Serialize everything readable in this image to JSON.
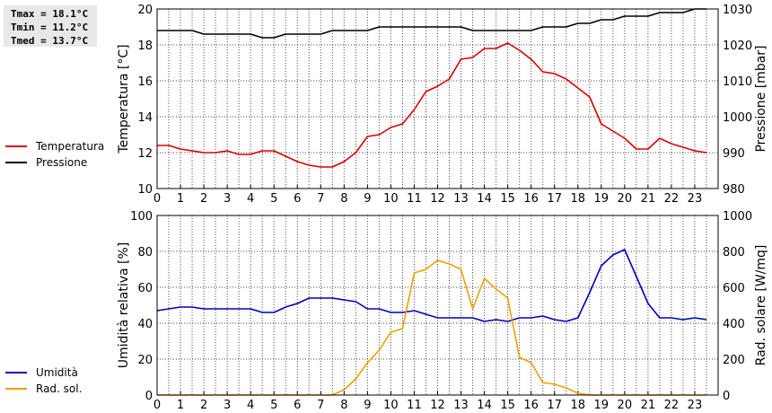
{
  "stats": {
    "tmax": "Tmax = 18.1°C",
    "tmin": "Tmin = 11.2°C",
    "tmed": "Tmed = 13.7°C"
  },
  "colors": {
    "temperature": "#dd0000",
    "pressure": "#000000",
    "humidity": "#0000bb",
    "radiation": "#f0a000",
    "grid": "#000000"
  },
  "chart_data": [
    {
      "type": "line",
      "xlabel": "",
      "x_ticks": [
        "0",
        "1",
        "2",
        "3",
        "4",
        "5",
        "6",
        "7",
        "8",
        "9",
        "10",
        "11",
        "12",
        "13",
        "14",
        "15",
        "16",
        "17",
        "18",
        "19",
        "20",
        "21",
        "22",
        "23"
      ],
      "xlim": [
        0,
        24
      ],
      "ylabel_left": "Temperatura [°C]",
      "ylim_left": [
        10,
        20
      ],
      "yticks_left": [
        "10",
        "12",
        "14",
        "16",
        "18",
        "20"
      ],
      "ylabel_right": "Pressione [mbar]",
      "ylim_right": [
        980,
        1030
      ],
      "yticks_right": [
        "980",
        "990",
        "1000",
        "1010",
        "1020",
        "1030"
      ],
      "legend": [
        "Temperatura",
        "Pressione"
      ],
      "series": [
        {
          "name": "Temperatura",
          "axis": "left",
          "x": [
            0,
            0.5,
            1,
            1.5,
            2,
            2.5,
            3,
            3.5,
            4,
            4.5,
            5,
            5.5,
            6,
            6.5,
            7,
            7.5,
            8,
            8.5,
            9,
            9.5,
            10,
            10.5,
            11,
            11.5,
            12,
            12.5,
            13,
            13.5,
            14,
            14.5,
            15,
            15.5,
            16,
            16.5,
            17,
            17.5,
            18,
            18.5,
            19,
            19.5,
            20,
            20.5,
            21,
            21.5,
            22,
            22.5,
            23,
            23.5
          ],
          "values": [
            12.4,
            12.4,
            12.2,
            12.1,
            12.0,
            12.0,
            12.1,
            11.9,
            11.9,
            12.1,
            12.1,
            11.8,
            11.5,
            11.3,
            11.2,
            11.2,
            11.5,
            12.0,
            12.9,
            13.0,
            13.4,
            13.6,
            14.4,
            15.4,
            15.7,
            16.1,
            17.2,
            17.3,
            17.8,
            17.8,
            18.1,
            17.7,
            17.2,
            16.5,
            16.4,
            16.1,
            15.6,
            15.1,
            13.6,
            13.2,
            12.8,
            12.2,
            12.2,
            12.8,
            12.5,
            12.3,
            12.1,
            12.0
          ]
        },
        {
          "name": "Pressione",
          "axis": "right",
          "x": [
            0,
            0.5,
            1,
            1.5,
            2,
            2.5,
            3,
            3.5,
            4,
            4.5,
            5,
            5.5,
            6,
            6.5,
            7,
            7.5,
            8,
            8.5,
            9,
            9.5,
            10,
            10.5,
            11,
            11.5,
            12,
            12.5,
            13,
            13.5,
            14,
            14.5,
            15,
            15.5,
            16,
            16.5,
            17,
            17.5,
            18,
            18.5,
            19,
            19.5,
            20,
            20.5,
            21,
            21.5,
            22,
            22.5,
            23,
            23.5
          ],
          "values": [
            1024,
            1024,
            1024,
            1024,
            1023,
            1023,
            1023,
            1023,
            1023,
            1022,
            1022,
            1023,
            1023,
            1023,
            1023,
            1024,
            1024,
            1024,
            1024,
            1025,
            1025,
            1025,
            1025,
            1025,
            1025,
            1025,
            1025,
            1024,
            1024,
            1024,
            1024,
            1024,
            1024,
            1025,
            1025,
            1025,
            1026,
            1026,
            1027,
            1027,
            1028,
            1028,
            1028,
            1029,
            1029,
            1029,
            1030,
            1030
          ]
        }
      ]
    },
    {
      "type": "line",
      "xlabel": "",
      "x_ticks": [
        "0",
        "1",
        "2",
        "3",
        "4",
        "5",
        "6",
        "7",
        "8",
        "9",
        "10",
        "11",
        "12",
        "13",
        "14",
        "15",
        "16",
        "17",
        "18",
        "19",
        "20",
        "21",
        "22",
        "23"
      ],
      "xlim": [
        0,
        24
      ],
      "ylabel_left": "Umidità relativa [%]",
      "ylim_left": [
        0,
        100
      ],
      "yticks_left": [
        "0",
        "20",
        "40",
        "60",
        "80",
        "100"
      ],
      "ylabel_right": "Rad. solare [W/mq]",
      "ylim_right": [
        0,
        1000
      ],
      "yticks_right": [
        "0",
        "200",
        "400",
        "600",
        "800",
        "1000"
      ],
      "legend": [
        "Umidità",
        "Rad. sol."
      ],
      "series": [
        {
          "name": "Umidità",
          "axis": "left",
          "x": [
            0,
            0.5,
            1,
            1.5,
            2,
            2.5,
            3,
            3.5,
            4,
            4.5,
            5,
            5.5,
            6,
            6.5,
            7,
            7.5,
            8,
            8.5,
            9,
            9.5,
            10,
            10.5,
            11,
            11.5,
            12,
            12.5,
            13,
            13.5,
            14,
            14.5,
            15,
            15.5,
            16,
            16.5,
            17,
            17.5,
            18,
            18.5,
            19,
            19.5,
            20,
            20.5,
            21,
            21.5,
            22,
            22.5,
            23,
            23.5
          ],
          "values": [
            47,
            48,
            49,
            49,
            48,
            48,
            48,
            48,
            48,
            46,
            46,
            49,
            51,
            54,
            54,
            54,
            53,
            52,
            48,
            48,
            46,
            46,
            47,
            45,
            43,
            43,
            43,
            43,
            41,
            42,
            41,
            43,
            43,
            44,
            42,
            41,
            43,
            57,
            72,
            78,
            81,
            66,
            51,
            43,
            43,
            42,
            43,
            42
          ]
        },
        {
          "name": "Rad. sol.",
          "axis": "right",
          "x": [
            0,
            0.5,
            1,
            1.5,
            2,
            2.5,
            3,
            3.5,
            4,
            4.5,
            5,
            5.5,
            6,
            6.5,
            7,
            7.5,
            8,
            8.5,
            9,
            9.5,
            10,
            10.5,
            11,
            11.5,
            12,
            12.5,
            13,
            13.5,
            14,
            14.5,
            15,
            15.5,
            16,
            16.5,
            17,
            17.5,
            18,
            18.5,
            19,
            19.5,
            20,
            20.5,
            21,
            21.5,
            22,
            22.5,
            23,
            23.5
          ],
          "values": [
            0,
            0,
            0,
            0,
            0,
            0,
            0,
            0,
            0,
            0,
            0,
            0,
            0,
            0,
            0,
            0,
            30,
            90,
            180,
            250,
            350,
            370,
            680,
            700,
            750,
            730,
            700,
            480,
            650,
            590,
            540,
            210,
            180,
            70,
            60,
            40,
            10,
            0,
            0,
            0,
            0,
            0,
            0,
            0,
            0,
            0,
            0,
            0
          ]
        }
      ]
    }
  ]
}
